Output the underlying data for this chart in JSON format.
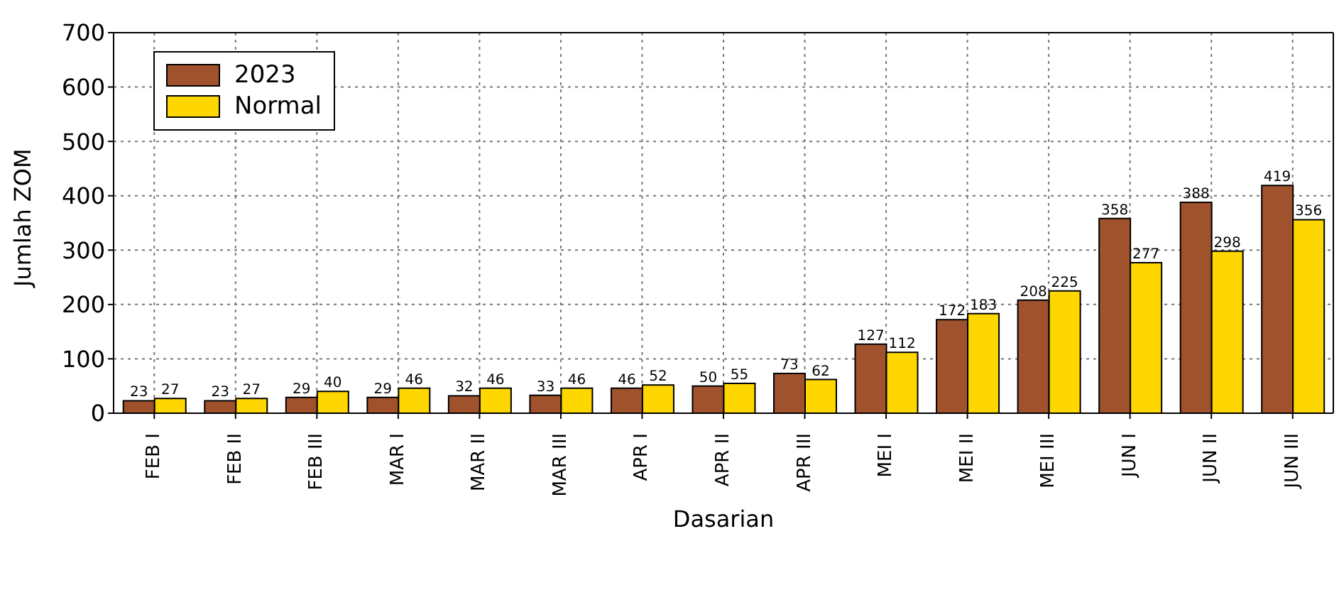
{
  "chart_data": {
    "type": "bar",
    "xlabel": "Dasarian",
    "ylabel": "Jumlah ZOM",
    "categories": [
      "FEB I",
      "FEB II",
      "FEB III",
      "MAR I",
      "MAR II",
      "MAR III",
      "APR I",
      "APR II",
      "APR III",
      "MEI I",
      "MEI II",
      "MEI III",
      "JUN I",
      "JUN II",
      "JUN III"
    ],
    "series": [
      {
        "name": "2023",
        "color": "#a0522d",
        "values": [
          23,
          23,
          29,
          29,
          32,
          33,
          46,
          50,
          73,
          127,
          172,
          208,
          358,
          388,
          419
        ]
      },
      {
        "name": "Normal",
        "color": "#ffd700",
        "values": [
          27,
          27,
          40,
          46,
          46,
          46,
          52,
          55,
          62,
          112,
          183,
          225,
          277,
          298,
          356
        ]
      }
    ],
    "ylim": [
      0,
      700
    ],
    "yticks": [
      0,
      100,
      200,
      300,
      400,
      500,
      600,
      700
    ],
    "grid": true,
    "legend": "top left",
    "data_labels": true
  }
}
